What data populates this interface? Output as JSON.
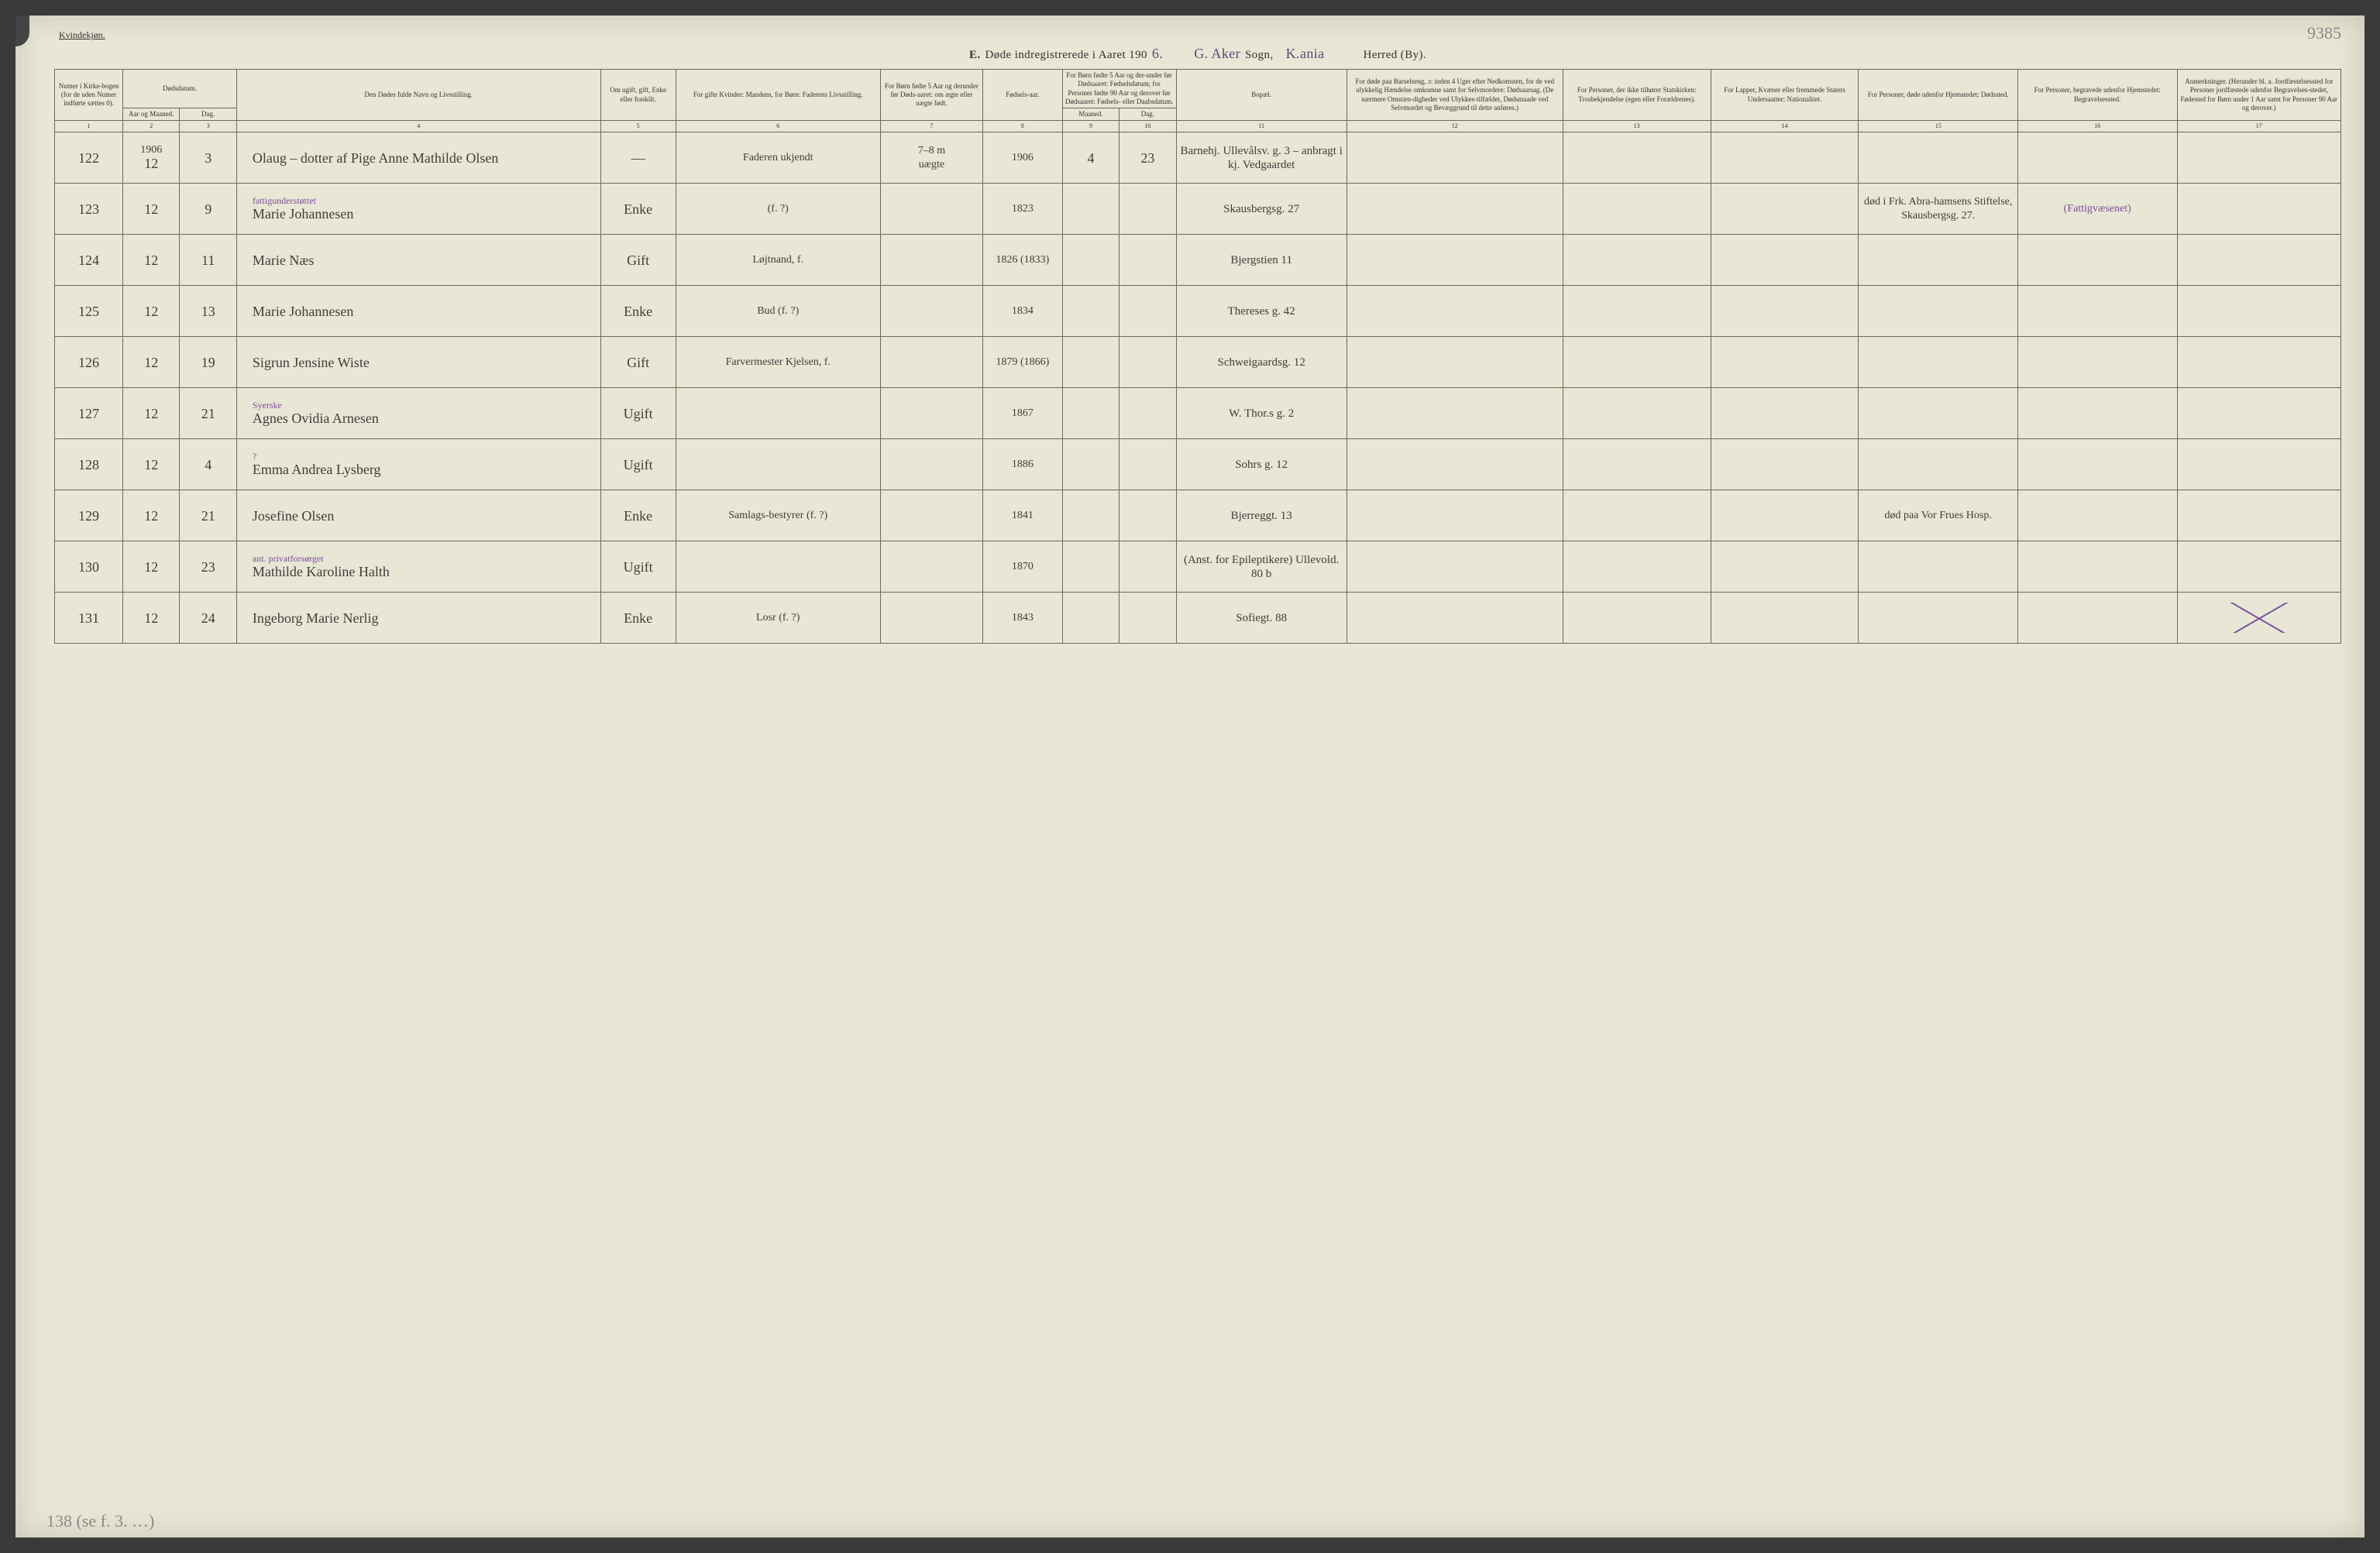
{
  "header": {
    "gender_label": "Kvindekjøn.",
    "page_number_hand": "9385",
    "title_prefix": "E.",
    "title_main": "Døde indregistrerede i Aaret 190",
    "title_year_hand": "6.",
    "sogn_label": "Sogn,",
    "sogn_value_hand": "G. Aker",
    "herred_suffix_hand": "K.ania",
    "herred_label": "Herred (By)."
  },
  "columns": {
    "c1": "Numer i Kirke-bogen (for de uden Numer indførte sættes 0).",
    "c2_group": "Dødsdatum.",
    "c2a": "Aar og Maaned.",
    "c2b": "Dag.",
    "c4": "Den Dødes fulde Navn og Livsstilling.",
    "c5": "Om ugift, gift, Enke eller fraskilt.",
    "c6": "For gifte Kvinder: Mandens, for Børn: Faderens Livsstilling.",
    "c7": "For Børn fødte 5 Aar og derunder før Døds-aaret: om ægte eller uægte født.",
    "c8": "Fødsels-aar.",
    "c9_10_group": "For Børn fødte 5 Aar og der-under før Dødsaaret: Fødselsdatum; for Personer fødte 90 Aar og derover før Dødsaaret: Fødsels- eller Daabsdatum.",
    "c9": "Maaned.",
    "c10": "Dag.",
    "c11": "Bopæl.",
    "c12": "For døde paa Barselseng, ɔ: inden 4 Uger efter Nedkomsten, for de ved ulykkelig Hændelse omkomne samt for Selvmordere: Dødsaarsag. (De nærmere Omstæn-digheder ved Ulykkes-tilfældet, Dødsmaade ved Selvmordet og Bevæggrund til dette anføres.)",
    "c13": "For Personer, der ikke tilhører Statskirken: Trosbekjendelse (egen eller Forældrenes).",
    "c14": "For Lapper, Kvæner eller fremmede Staters Undersaatter: Nationalitet.",
    "c15": "For Personer, døde udenfor Hjemstedet: Dødssted.",
    "c16": "For Personer, begravede udenfor Hjemstedet: Begravelsessted.",
    "c17": "Anmerkninger. (Herunder bl. a. Jordfæstelsessted for Personer jordfæstede udenfor Begravelses-stedet, Fødested for Børn under 1 Aar samt for Personer 90 Aar og derover.)",
    "nums": [
      "1",
      "2",
      "3",
      "4",
      "5",
      "6",
      "7",
      "8",
      "9",
      "10",
      "11",
      "12",
      "13",
      "14",
      "15",
      "16",
      "17"
    ]
  },
  "year_above": "1906",
  "col7_hand_top": "7–8 m",
  "rows": [
    {
      "num": "122",
      "maaned": "12",
      "dag": "3",
      "name": "Olaug – dotter af Pige Anne Mathilde Olsen",
      "anno": "",
      "status": "—",
      "col6": "Faderen ukjendt",
      "col7": "uægte",
      "faar": "1906",
      "m": "4",
      "d": "23",
      "bopael": "Barnehj. Ullevålsv. g. 3 – anbragt i kj. Vedgaardet",
      "c15": "",
      "c16": "",
      "c17": ""
    },
    {
      "num": "123",
      "maaned": "12",
      "dag": "9",
      "name": "Marie Johannesen",
      "anno": "fattigunderstøttet",
      "status": "Enke",
      "col6": "(f. ?)",
      "col7": "",
      "faar": "1823",
      "m": "",
      "d": "",
      "bopael": "Skausbergsg. 27",
      "c15": "død i Frk. Abra-hamsens Stiftelse, Skausbergsg. 27.",
      "c16": "(Fattigvæsenet)",
      "c17": ""
    },
    {
      "num": "124",
      "maaned": "12",
      "dag": "11",
      "name": "Marie Næs",
      "anno": "",
      "status": "Gift",
      "col6": "Løjtnand, f.",
      "col7": "",
      "faar": "1826 (1833)",
      "m": "",
      "d": "",
      "bopael": "Bjergstien 11",
      "c15": "",
      "c16": "",
      "c17": ""
    },
    {
      "num": "125",
      "maaned": "12",
      "dag": "13",
      "name": "Marie Johannesen",
      "anno": "",
      "status": "Enke",
      "col6": "Bud (f. ?)",
      "col7": "",
      "faar": "1834",
      "m": "",
      "d": "",
      "bopael": "Thereses g. 42",
      "c15": "",
      "c16": "",
      "c17": ""
    },
    {
      "num": "126",
      "maaned": "12",
      "dag": "19",
      "name": "Sigrun Jensine Wiste",
      "anno": "",
      "status": "Gift",
      "col6": "Farvermester Kjelsen, f.",
      "col7": "",
      "faar": "1879 (1866)",
      "m": "",
      "d": "",
      "bopael": "Schweigaardsg. 12",
      "c15": "",
      "c16": "",
      "c17": ""
    },
    {
      "num": "127",
      "maaned": "12",
      "dag": "21",
      "name": "Agnes Ovidia Arnesen",
      "anno": "Syerske",
      "status": "Ugift",
      "col6": "",
      "col7": "",
      "faar": "1867",
      "m": "",
      "d": "",
      "bopael": "W. Thor.s g. 2",
      "c15": "",
      "c16": "",
      "c17": ""
    },
    {
      "num": "128",
      "maaned": "12",
      "dag": "4",
      "name": "Emma Andrea Lysberg",
      "anno": "?",
      "status": "Ugift",
      "col6": "",
      "col7": "",
      "faar": "1886",
      "m": "",
      "d": "",
      "bopael": "Sohrs g. 12",
      "c15": "",
      "c16": "",
      "c17": ""
    },
    {
      "num": "129",
      "maaned": "12",
      "dag": "21",
      "name": "Josefine Olsen",
      "anno": "",
      "status": "Enke",
      "col6": "Samlags-bestyrer (f. ?)",
      "col7": "",
      "faar": "1841",
      "m": "",
      "d": "",
      "bopael": "Bjerreggt. 13",
      "c15": "død paa Vor Frues Hosp.",
      "c16": "",
      "c17": ""
    },
    {
      "num": "130",
      "maaned": "12",
      "dag": "23",
      "name": "Mathilde Karoline Halth",
      "anno": "ant. privatforsørget",
      "status": "Ugift",
      "col6": "",
      "col7": "",
      "faar": "1870",
      "m": "",
      "d": "",
      "bopael": "(Anst. for Epileptikere) Ullevold. 80 b",
      "c15": "",
      "c16": "",
      "c17": ""
    },
    {
      "num": "131",
      "maaned": "12",
      "dag": "24",
      "name": "Ingeborg Marie Nerlig",
      "anno": "",
      "status": "Enke",
      "col6": "Losr (f. ?)",
      "col7": "",
      "faar": "1843",
      "m": "",
      "d": "",
      "bopael": "Sofiegt. 88",
      "c15": "",
      "c16": "",
      "c17": "cross"
    }
  ],
  "footer_note": "138 (se f. 3. …)"
}
